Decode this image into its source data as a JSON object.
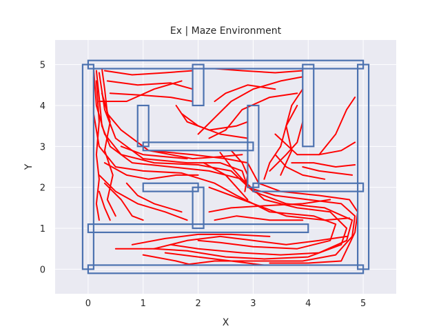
{
  "chart_data": {
    "type": "line",
    "title": "Ex | Maze Environment",
    "xlabel": "X",
    "ylabel": "Y",
    "xlim": [
      -0.6,
      5.6
    ],
    "ylim": [
      -0.6,
      5.6
    ],
    "xticks": [
      0,
      1,
      2,
      3,
      4,
      5
    ],
    "yticks": [
      0,
      1,
      2,
      3,
      4,
      5
    ],
    "grid": true,
    "colors": {
      "background": "#eaeaf2",
      "grid": "#ffffff",
      "walls": "#4c72b0",
      "trajectories": "#ff0000"
    },
    "walls": [
      {
        "x": [
          0,
          5
        ],
        "y": [
          5,
          5
        ]
      },
      {
        "x": [
          0,
          5
        ],
        "y": [
          0,
          0
        ]
      },
      {
        "x": [
          0,
          0
        ],
        "y": [
          0,
          5
        ]
      },
      {
        "x": [
          5,
          5
        ],
        "y": [
          0,
          5
        ]
      },
      {
        "x": [
          2,
          2
        ],
        "y": [
          4,
          5
        ]
      },
      {
        "x": [
          4,
          4
        ],
        "y": [
          3,
          5
        ]
      },
      {
        "x": [
          1,
          1
        ],
        "y": [
          3,
          4
        ]
      },
      {
        "x": [
          1,
          3
        ],
        "y": [
          3,
          3
        ]
      },
      {
        "x": [
          3,
          3
        ],
        "y": [
          2,
          4
        ]
      },
      {
        "x": [
          1,
          2
        ],
        "y": [
          2,
          2
        ]
      },
      {
        "x": [
          2,
          2
        ],
        "y": [
          1,
          2
        ]
      },
      {
        "x": [
          3,
          5
        ],
        "y": [
          2,
          2
        ]
      },
      {
        "x": [
          0,
          4
        ],
        "y": [
          1,
          1
        ]
      }
    ],
    "series": [
      {
        "values": [
          [
            0.15,
            4.85
          ],
          [
            0.2,
            4.2
          ],
          [
            0.25,
            3.5
          ],
          [
            0.4,
            3.0
          ],
          [
            0.8,
            2.6
          ],
          [
            1.5,
            2.5
          ],
          [
            2.2,
            2.4
          ],
          [
            2.8,
            2.2
          ],
          [
            3.2,
            1.7
          ],
          [
            3.8,
            1.5
          ],
          [
            4.4,
            1.4
          ],
          [
            4.7,
            1.0
          ],
          [
            4.6,
            0.6
          ],
          [
            4.0,
            0.3
          ],
          [
            3.2,
            0.25
          ],
          [
            2.5,
            0.3
          ],
          [
            1.8,
            0.45
          ],
          [
            1.2,
            0.5
          ],
          [
            0.5,
            0.5
          ]
        ]
      },
      {
        "values": [
          [
            0.1,
            4.9
          ],
          [
            0.15,
            4.0
          ],
          [
            0.3,
            3.3
          ],
          [
            0.6,
            2.8
          ],
          [
            1.2,
            2.6
          ],
          [
            2.0,
            2.55
          ],
          [
            2.6,
            2.4
          ],
          [
            3.0,
            1.9
          ],
          [
            3.6,
            1.6
          ],
          [
            4.3,
            1.5
          ],
          [
            4.8,
            1.2
          ],
          [
            4.7,
            0.7
          ],
          [
            4.2,
            0.4
          ],
          [
            3.5,
            0.35
          ],
          [
            2.8,
            0.4
          ],
          [
            2.0,
            0.5
          ],
          [
            1.5,
            0.6
          ]
        ]
      },
      {
        "values": [
          [
            0.2,
            4.8
          ],
          [
            0.3,
            3.9
          ],
          [
            0.5,
            3.2
          ],
          [
            1.0,
            2.7
          ],
          [
            1.8,
            2.6
          ],
          [
            2.4,
            2.6
          ],
          [
            2.8,
            2.4
          ],
          [
            2.9,
            2.0
          ],
          [
            3.4,
            1.8
          ],
          [
            4.0,
            1.7
          ],
          [
            4.6,
            1.6
          ],
          [
            4.85,
            1.3
          ],
          [
            4.8,
            0.8
          ],
          [
            4.5,
            0.35
          ],
          [
            3.9,
            0.2
          ],
          [
            3.0,
            0.2
          ],
          [
            2.3,
            0.2
          ],
          [
            1.7,
            0.1
          ]
        ]
      },
      {
        "values": [
          [
            0.1,
            4.7
          ],
          [
            0.1,
            3.8
          ],
          [
            0.2,
            3.0
          ],
          [
            0.5,
            2.5
          ],
          [
            1.0,
            2.4
          ],
          [
            1.7,
            2.35
          ],
          [
            2.3,
            2.1
          ],
          [
            2.7,
            1.8
          ],
          [
            3.3,
            1.4
          ],
          [
            4.1,
            1.3
          ],
          [
            4.5,
            1.1
          ],
          [
            4.4,
            0.7
          ],
          [
            3.8,
            0.5
          ],
          [
            3.0,
            0.55
          ],
          [
            2.4,
            0.65
          ],
          [
            2.0,
            0.7
          ]
        ]
      },
      {
        "values": [
          [
            0.25,
            4.9
          ],
          [
            0.3,
            4.4
          ],
          [
            0.35,
            3.8
          ],
          [
            0.6,
            3.4
          ],
          [
            1.1,
            2.9
          ],
          [
            1.9,
            2.8
          ],
          [
            2.5,
            2.7
          ],
          [
            2.9,
            2.6
          ],
          [
            3.1,
            2.1
          ],
          [
            3.5,
            1.9
          ],
          [
            4.2,
            1.8
          ],
          [
            4.75,
            1.7
          ],
          [
            4.9,
            1.4
          ],
          [
            4.85,
            0.9
          ],
          [
            4.6,
            0.2
          ],
          [
            4.0,
            0.15
          ],
          [
            3.3,
            0.15
          ]
        ]
      },
      {
        "values": [
          [
            0.15,
            4.6
          ],
          [
            0.2,
            3.6
          ],
          [
            0.15,
            2.8
          ],
          [
            0.2,
            2.2
          ],
          [
            0.15,
            1.6
          ],
          [
            0.2,
            1.2
          ]
        ]
      },
      {
        "values": [
          [
            0.25,
            4.3
          ],
          [
            0.4,
            3.6
          ],
          [
            0.3,
            2.9
          ],
          [
            0.45,
            2.3
          ],
          [
            0.35,
            1.7
          ],
          [
            0.5,
            1.3
          ]
        ]
      },
      {
        "values": [
          [
            0.2,
            2.3
          ],
          [
            0.5,
            1.9
          ],
          [
            0.9,
            1.6
          ],
          [
            1.4,
            1.4
          ],
          [
            1.8,
            1.2
          ]
        ]
      },
      {
        "values": [
          [
            0.3,
            2.1
          ],
          [
            0.6,
            1.7
          ],
          [
            0.8,
            1.3
          ],
          [
            1.0,
            1.2
          ]
        ]
      },
      {
        "values": [
          [
            0.2,
            1.9
          ],
          [
            0.3,
            1.5
          ],
          [
            0.4,
            1.2
          ]
        ]
      },
      {
        "values": [
          [
            0.3,
            4.85
          ],
          [
            0.8,
            4.75
          ],
          [
            1.4,
            4.8
          ],
          [
            1.9,
            4.85
          ]
        ]
      },
      {
        "values": [
          [
            0.35,
            4.6
          ],
          [
            0.9,
            4.5
          ],
          [
            1.5,
            4.55
          ],
          [
            1.9,
            4.4
          ]
        ]
      },
      {
        "values": [
          [
            0.4,
            4.3
          ],
          [
            1.0,
            4.25
          ],
          [
            1.5,
            4.2
          ],
          [
            1.9,
            4.1
          ]
        ]
      },
      {
        "values": [
          [
            0.2,
            4.1
          ],
          [
            0.7,
            4.1
          ],
          [
            1.2,
            4.4
          ],
          [
            1.7,
            4.6
          ]
        ]
      },
      {
        "values": [
          [
            2.3,
            4.9
          ],
          [
            2.8,
            4.85
          ],
          [
            3.4,
            4.8
          ],
          [
            3.9,
            4.85
          ]
        ]
      },
      {
        "values": [
          [
            2.0,
            3.3
          ],
          [
            2.3,
            3.7
          ],
          [
            2.6,
            4.1
          ],
          [
            3.0,
            4.4
          ],
          [
            3.5,
            4.6
          ],
          [
            3.9,
            4.7
          ]
        ]
      },
      {
        "values": [
          [
            1.6,
            4.0
          ],
          [
            1.8,
            3.6
          ],
          [
            2.2,
            3.4
          ],
          [
            2.7,
            3.5
          ],
          [
            2.9,
            3.6
          ]
        ]
      },
      {
        "values": [
          [
            2.2,
            3.2
          ],
          [
            2.5,
            3.4
          ],
          [
            2.8,
            3.9
          ],
          [
            3.3,
            4.2
          ],
          [
            3.8,
            4.3
          ]
        ]
      },
      {
        "values": [
          [
            1.7,
            3.8
          ],
          [
            2.0,
            3.5
          ],
          [
            2.4,
            3.3
          ],
          [
            2.9,
            3.2
          ]
        ]
      },
      {
        "values": [
          [
            2.3,
            4.1
          ],
          [
            2.5,
            4.3
          ],
          [
            2.9,
            4.5
          ],
          [
            3.4,
            4.4
          ]
        ]
      },
      {
        "values": [
          [
            3.2,
            2.2
          ],
          [
            3.3,
            2.6
          ],
          [
            3.5,
            3.0
          ],
          [
            3.6,
            3.5
          ],
          [
            3.7,
            4.0
          ],
          [
            3.9,
            4.4
          ]
        ]
      },
      {
        "values": [
          [
            3.3,
            2.4
          ],
          [
            3.6,
            2.8
          ],
          [
            3.8,
            3.1
          ],
          [
            3.9,
            3.6
          ]
        ]
      },
      {
        "values": [
          [
            3.5,
            2.3
          ],
          [
            3.7,
            2.9
          ],
          [
            3.6,
            3.5
          ],
          [
            3.8,
            4.0
          ]
        ]
      },
      {
        "values": [
          [
            3.9,
            2.5
          ],
          [
            4.2,
            2.4
          ],
          [
            4.5,
            2.35
          ],
          [
            4.8,
            2.3
          ]
        ]
      },
      {
        "values": [
          [
            3.7,
            2.6
          ],
          [
            4.1,
            2.6
          ],
          [
            4.5,
            2.5
          ],
          [
            4.85,
            2.55
          ]
        ]
      },
      {
        "values": [
          [
            3.4,
            3.3
          ],
          [
            3.8,
            2.8
          ],
          [
            4.2,
            2.8
          ],
          [
            4.6,
            2.9
          ],
          [
            4.85,
            3.1
          ]
        ]
      },
      {
        "values": [
          [
            4.2,
            2.8
          ],
          [
            4.5,
            3.3
          ],
          [
            4.7,
            3.9
          ],
          [
            4.85,
            4.2
          ]
        ]
      },
      {
        "values": [
          [
            3.4,
            2.8
          ],
          [
            3.6,
            2.5
          ],
          [
            3.9,
            2.3
          ],
          [
            4.3,
            2.2
          ]
        ]
      },
      {
        "values": [
          [
            2.2,
            2.0
          ],
          [
            2.6,
            1.8
          ],
          [
            3.0,
            1.6
          ],
          [
            3.6,
            1.3
          ],
          [
            4.3,
            1.2
          ],
          [
            4.75,
            1.25
          ]
        ]
      },
      {
        "values": [
          [
            2.2,
            1.4
          ],
          [
            2.6,
            1.5
          ],
          [
            3.2,
            1.55
          ],
          [
            3.9,
            1.6
          ],
          [
            4.4,
            1.7
          ]
        ]
      },
      {
        "values": [
          [
            2.3,
            1.2
          ],
          [
            2.7,
            1.3
          ],
          [
            3.3,
            1.2
          ],
          [
            3.9,
            1.2
          ]
        ]
      },
      {
        "values": [
          [
            2.1,
            2.6
          ],
          [
            2.5,
            2.3
          ],
          [
            2.7,
            2.0
          ],
          [
            2.9,
            1.7
          ]
        ]
      },
      {
        "values": [
          [
            2.4,
            2.85
          ],
          [
            2.6,
            2.5
          ],
          [
            2.8,
            2.2
          ],
          [
            3.0,
            1.9
          ]
        ]
      },
      {
        "values": [
          [
            2.6,
            2.9
          ],
          [
            2.8,
            2.6
          ],
          [
            2.9,
            2.3
          ],
          [
            2.85,
            1.9
          ]
        ]
      },
      {
        "values": [
          [
            1.2,
            0.5
          ],
          [
            1.8,
            0.7
          ],
          [
            2.4,
            0.8
          ],
          [
            3.0,
            0.7
          ],
          [
            3.6,
            0.6
          ],
          [
            4.2,
            0.7
          ],
          [
            4.7,
            0.8
          ]
        ]
      },
      {
        "values": [
          [
            0.8,
            0.6
          ],
          [
            1.4,
            0.75
          ],
          [
            2.0,
            0.85
          ],
          [
            2.6,
            0.85
          ],
          [
            3.3,
            0.8
          ]
        ]
      },
      {
        "values": [
          [
            1.4,
            0.4
          ],
          [
            2.0,
            0.3
          ],
          [
            2.6,
            0.2
          ],
          [
            3.2,
            0.1
          ],
          [
            3.8,
            0.1
          ]
        ]
      },
      {
        "values": [
          [
            1.0,
            0.35
          ],
          [
            1.6,
            0.2
          ],
          [
            1.9,
            0.1
          ]
        ]
      },
      {
        "values": [
          [
            1.1,
            2.9
          ],
          [
            1.5,
            2.8
          ],
          [
            1.9,
            2.7
          ],
          [
            2.4,
            2.75
          ],
          [
            2.8,
            2.8
          ]
        ]
      },
      {
        "values": [
          [
            0.6,
            3.0
          ],
          [
            1.0,
            2.8
          ],
          [
            1.4,
            2.75
          ],
          [
            1.8,
            2.7
          ]
        ]
      },
      {
        "values": [
          [
            0.3,
            2.6
          ],
          [
            0.7,
            2.3
          ],
          [
            1.1,
            2.2
          ],
          [
            1.6,
            2.3
          ],
          [
            2.0,
            2.3
          ]
        ]
      },
      {
        "values": [
          [
            0.7,
            2.1
          ],
          [
            0.9,
            1.8
          ],
          [
            1.2,
            1.6
          ],
          [
            1.7,
            1.4
          ]
        ]
      }
    ]
  }
}
